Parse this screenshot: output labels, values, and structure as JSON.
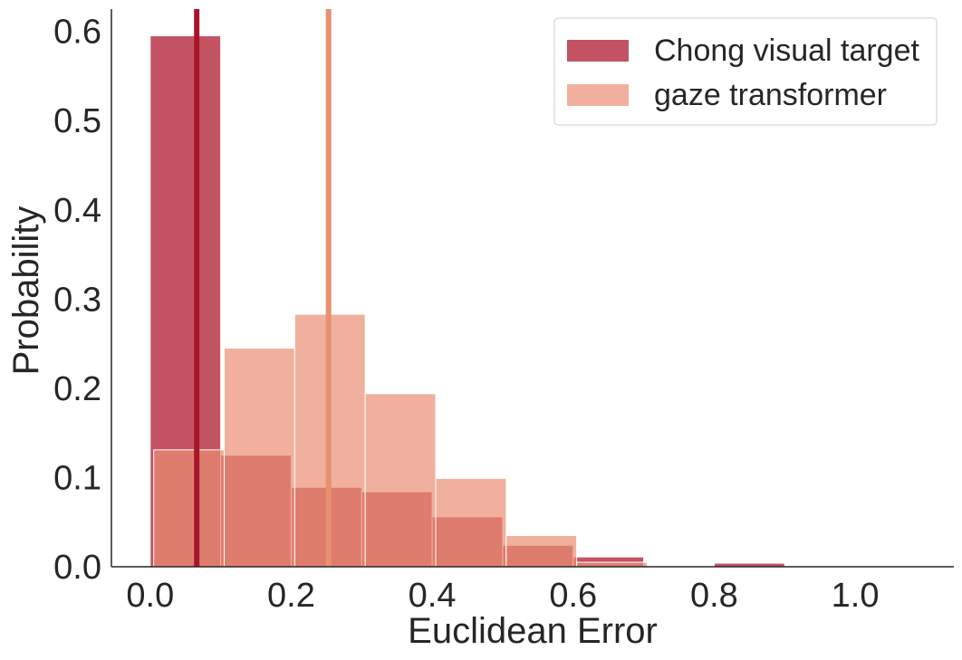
{
  "chart_data": {
    "type": "bar",
    "subtype": "histogram",
    "xlabel": "Euclidean Error",
    "ylabel": "Probability",
    "xlim": [
      -0.055,
      1.14
    ],
    "ylim": [
      0,
      0.625
    ],
    "xticks": [
      0.0,
      0.2,
      0.4,
      0.6,
      0.8,
      1.0
    ],
    "xtick_labels": [
      "0.0",
      "0.2",
      "0.4",
      "0.6",
      "0.8",
      "1.0"
    ],
    "yticks": [
      0.0,
      0.1,
      0.2,
      0.3,
      0.4,
      0.5,
      0.6
    ],
    "ytick_labels": [
      "0.0",
      "0.1",
      "0.2",
      "0.3",
      "0.4",
      "0.5",
      "0.6"
    ],
    "grid": false,
    "legend_position": "top-right",
    "series": [
      {
        "name": "Chong visual target",
        "color": "#b4283c",
        "opacity": 0.8,
        "bins": [
          {
            "x0": 0.0,
            "x1": 0.1,
            "value": 0.595
          },
          {
            "x0": 0.1,
            "x1": 0.2,
            "value": 0.125
          },
          {
            "x0": 0.2,
            "x1": 0.3,
            "value": 0.089
          },
          {
            "x0": 0.3,
            "x1": 0.4,
            "value": 0.084
          },
          {
            "x0": 0.4,
            "x1": 0.5,
            "value": 0.056
          },
          {
            "x0": 0.5,
            "x1": 0.6,
            "value": 0.024
          },
          {
            "x0": 0.6,
            "x1": 0.7,
            "value": 0.011
          },
          {
            "x0": 0.7,
            "x1": 0.8,
            "value": 0.0
          },
          {
            "x0": 0.8,
            "x1": 0.9,
            "value": 0.004
          },
          {
            "x0": 0.9,
            "x1": 1.0,
            "value": 0.0
          }
        ],
        "median_line": 0.066,
        "median_color": "#a8152b"
      },
      {
        "name": "gaze transformer",
        "color": "#ea8f73",
        "opacity": 0.7,
        "bins": [
          {
            "x0": 0.005,
            "x1": 0.105,
            "value": 0.131
          },
          {
            "x0": 0.105,
            "x1": 0.205,
            "value": 0.245
          },
          {
            "x0": 0.205,
            "x1": 0.305,
            "value": 0.283
          },
          {
            "x0": 0.305,
            "x1": 0.405,
            "value": 0.194
          },
          {
            "x0": 0.405,
            "x1": 0.505,
            "value": 0.099
          },
          {
            "x0": 0.505,
            "x1": 0.605,
            "value": 0.035
          },
          {
            "x0": 0.605,
            "x1": 0.705,
            "value": 0.005
          }
        ],
        "median_line": 0.253,
        "median_color": "#e8906f"
      }
    ]
  }
}
